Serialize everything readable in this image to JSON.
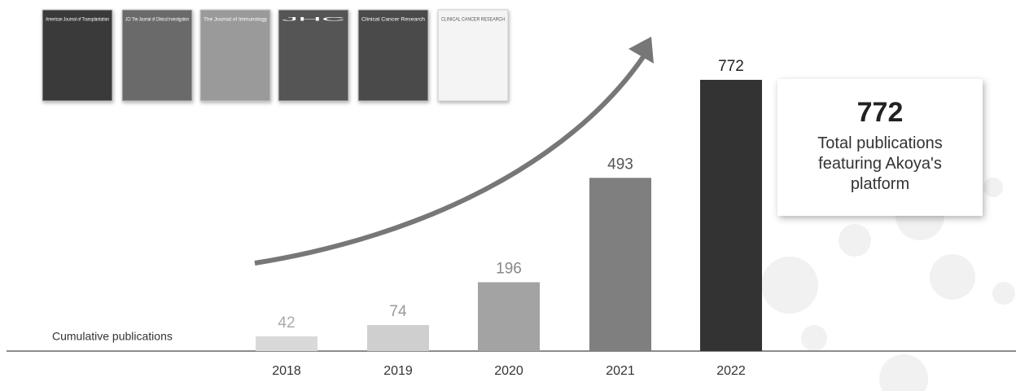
{
  "chart_data": {
    "type": "bar",
    "y_label": "Cumulative publications",
    "categories": [
      "2018",
      "2019",
      "2020",
      "2021",
      "2022"
    ],
    "values": [
      42,
      74,
      196,
      493,
      772
    ],
    "colors": [
      "#d9d9d9",
      "#cfcfcf",
      "#a3a3a3",
      "#7f7f7f",
      "#333333"
    ],
    "callout": {
      "value": 772,
      "text": "Total publications featuring Akoya's platform"
    },
    "covers": [
      "American Journal of Transplantation",
      "JCI The Journal of Clinical Investigation",
      "The Journal of Immunology",
      "JHC",
      "Clinical Cancer Research",
      "CLINICAL CANCER RESEARCH"
    ]
  }
}
